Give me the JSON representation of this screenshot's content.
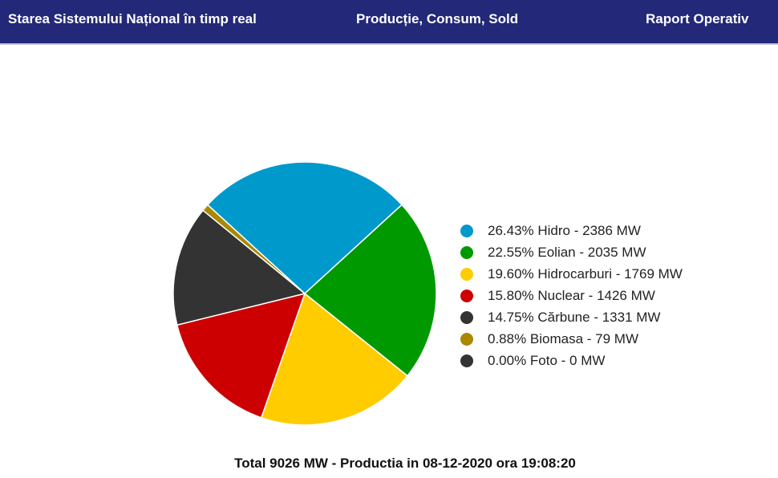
{
  "header": {
    "links": [
      "Starea Sistemului Național în timp real",
      "Producție, Consum, Sold",
      "Raport Operativ"
    ]
  },
  "chart_data": {
    "type": "pie",
    "title": "Total 9026 MW - Productia in 08-12-2020 ora 19:08:20",
    "legend_position": "right",
    "slices": [
      {
        "label": "26.43% Hidro - 2386 MW",
        "name": "Hidro",
        "percent": 26.43,
        "value": 2386,
        "color": "#0099cc"
      },
      {
        "label": "22.55% Eolian - 2035 MW",
        "name": "Eolian",
        "percent": 22.55,
        "value": 2035,
        "color": "#009900"
      },
      {
        "label": "19.60% Hidrocarburi - 1769 MW",
        "name": "Hidrocarburi",
        "percent": 19.6,
        "value": 1769,
        "color": "#ffcc00"
      },
      {
        "label": "15.80% Nuclear - 1426 MW",
        "name": "Nuclear",
        "percent": 15.8,
        "value": 1426,
        "color": "#cc0000"
      },
      {
        "label": "14.75% Cărbune - 1331 MW",
        "name": "Cărbune",
        "percent": 14.75,
        "value": 1331,
        "color": "#333333"
      },
      {
        "label": "0.88% Biomasa - 79 MW",
        "name": "Biomasa",
        "percent": 0.88,
        "value": 79,
        "color": "#aa8800"
      },
      {
        "label": "0.00% Foto - 0 MW",
        "name": "Foto",
        "percent": 0.0,
        "value": 0,
        "color": "#333333"
      }
    ]
  }
}
